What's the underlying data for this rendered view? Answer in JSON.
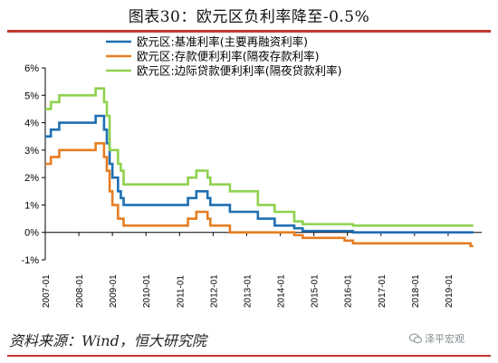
{
  "header": {
    "title": "图表30：欧元区负利率降至-0.5%"
  },
  "footer": {
    "source": "资料来源：Wind，恒大研究院",
    "watermark": "泽平宏观"
  },
  "colors": {
    "accent": "#c0392b",
    "mro": "#1f6fb2",
    "deposit": "#e67e22",
    "marginal": "#8fd14f"
  },
  "icons": {
    "watermark": "wechat-icon"
  },
  "chart_data": {
    "type": "line",
    "title": "",
    "xlabel": "",
    "ylabel": "",
    "ylim": [
      -1,
      6
    ],
    "xlim": [
      "2007-01",
      "2020-01"
    ],
    "grid": false,
    "legend_position": "top-left",
    "y_ticks": [
      "6%",
      "5%",
      "4%",
      "3%",
      "2%",
      "1%",
      "0%",
      "-1%"
    ],
    "x_ticks": [
      "2007-01",
      "2008-01",
      "2009-01",
      "2010-01",
      "2011-01",
      "2012-01",
      "2013-01",
      "2014-01",
      "2015-01",
      "2016-01",
      "2017-01",
      "2018-01",
      "2019-01"
    ],
    "series": [
      {
        "name": "欧元区:基准利率(主要再融资利率)",
        "color": "#1f6fb2",
        "points": [
          [
            "2007-01",
            3.5
          ],
          [
            "2007-03",
            3.75
          ],
          [
            "2007-06",
            4.0
          ],
          [
            "2008-07",
            4.25
          ],
          [
            "2008-10",
            3.75
          ],
          [
            "2008-11",
            3.25
          ],
          [
            "2008-12",
            2.5
          ],
          [
            "2009-01",
            2.0
          ],
          [
            "2009-03",
            1.5
          ],
          [
            "2009-04",
            1.25
          ],
          [
            "2009-05",
            1.0
          ],
          [
            "2011-04",
            1.25
          ],
          [
            "2011-07",
            1.5
          ],
          [
            "2011-11",
            1.25
          ],
          [
            "2011-12",
            1.0
          ],
          [
            "2012-07",
            0.75
          ],
          [
            "2013-05",
            0.5
          ],
          [
            "2013-11",
            0.25
          ],
          [
            "2014-06",
            0.15
          ],
          [
            "2014-09",
            0.05
          ],
          [
            "2016-03",
            0.0
          ],
          [
            "2019-10",
            0.0
          ]
        ]
      },
      {
        "name": "欧元区:存款便利利率(隔夜存款利率)",
        "color": "#e67e22",
        "points": [
          [
            "2007-01",
            2.5
          ],
          [
            "2007-03",
            2.75
          ],
          [
            "2007-06",
            3.0
          ],
          [
            "2008-07",
            3.25
          ],
          [
            "2008-10",
            2.75
          ],
          [
            "2008-11",
            2.25
          ],
          [
            "2008-12",
            1.5
          ],
          [
            "2009-01",
            1.0
          ],
          [
            "2009-03",
            0.5
          ],
          [
            "2009-05",
            0.25
          ],
          [
            "2011-04",
            0.5
          ],
          [
            "2011-07",
            0.75
          ],
          [
            "2011-11",
            0.5
          ],
          [
            "2011-12",
            0.25
          ],
          [
            "2012-07",
            0.0
          ],
          [
            "2014-06",
            -0.1
          ],
          [
            "2014-09",
            -0.2
          ],
          [
            "2015-12",
            -0.3
          ],
          [
            "2016-03",
            -0.4
          ],
          [
            "2019-09",
            -0.5
          ],
          [
            "2019-10",
            -0.5
          ]
        ]
      },
      {
        "name": "欧元区:边际贷款便利利率(隔夜贷款利率)",
        "color": "#8fd14f",
        "points": [
          [
            "2007-01",
            4.5
          ],
          [
            "2007-03",
            4.75
          ],
          [
            "2007-06",
            5.0
          ],
          [
            "2008-07",
            5.25
          ],
          [
            "2008-10",
            4.75
          ],
          [
            "2008-11",
            4.25
          ],
          [
            "2008-12",
            3.0
          ],
          [
            "2009-01",
            3.0
          ],
          [
            "2009-03",
            2.5
          ],
          [
            "2009-04",
            2.25
          ],
          [
            "2009-05",
            1.75
          ],
          [
            "2011-04",
            2.0
          ],
          [
            "2011-07",
            2.25
          ],
          [
            "2011-11",
            2.0
          ],
          [
            "2011-12",
            1.75
          ],
          [
            "2012-07",
            1.5
          ],
          [
            "2013-05",
            1.0
          ],
          [
            "2013-11",
            0.75
          ],
          [
            "2014-06",
            0.4
          ],
          [
            "2014-09",
            0.3
          ],
          [
            "2016-03",
            0.25
          ],
          [
            "2019-10",
            0.25
          ]
        ]
      }
    ]
  }
}
